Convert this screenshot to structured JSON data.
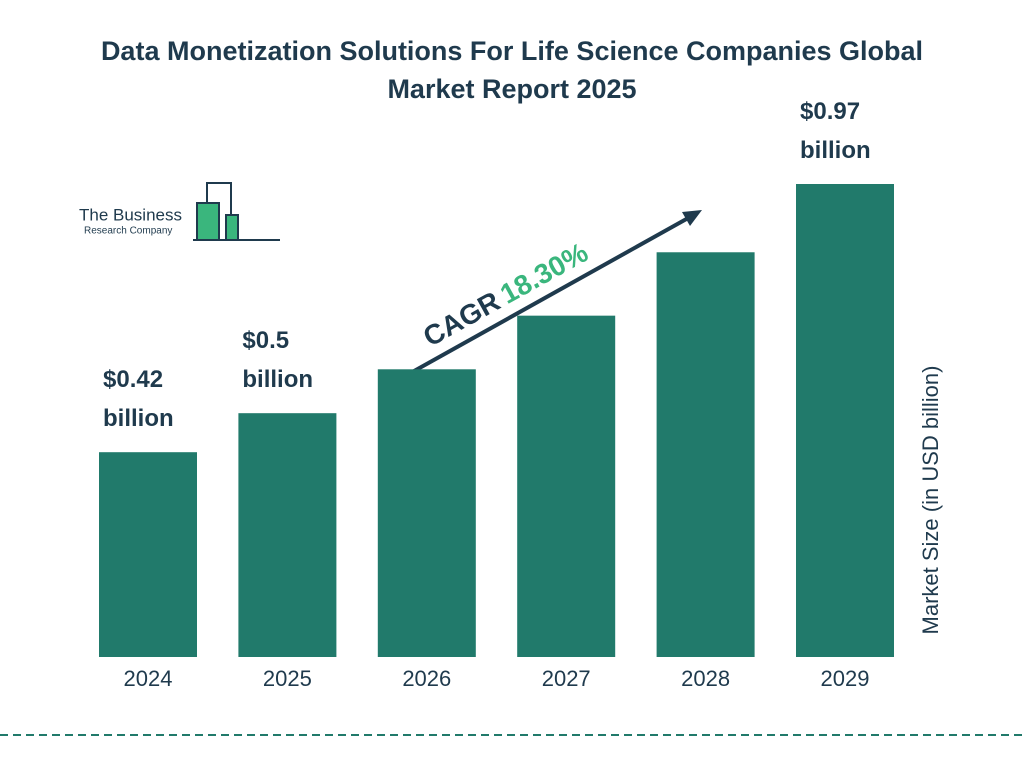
{
  "chart_data": {
    "type": "bar",
    "title": "Data Monetization Solutions For Life Science Companies Global Market Report 2025",
    "categories": [
      "2024",
      "2025",
      "2026",
      "2027",
      "2028",
      "2029"
    ],
    "values": [
      0.42,
      0.5,
      0.59,
      0.7,
      0.83,
      0.97
    ],
    "value_labels": [
      "$0.42 billion",
      "$0.5 billion",
      null,
      null,
      null,
      "$0.97 billion"
    ],
    "color": "#217a6b",
    "y_label": "Market Size (in USD billion)",
    "annotation": {
      "label": "CAGR",
      "value": "18.30%"
    }
  },
  "logo": {
    "line1": "The Business",
    "line2": "Research Company"
  }
}
